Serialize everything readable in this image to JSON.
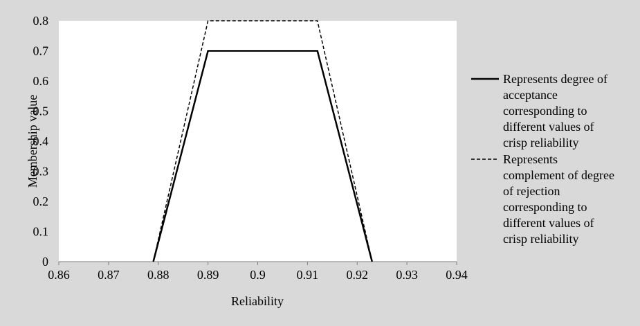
{
  "chart_data": {
    "type": "line",
    "xlabel": "Reliability",
    "ylabel": "Membership value",
    "xlim": [
      0.86,
      0.94
    ],
    "ylim": [
      0,
      0.8
    ],
    "x_ticks": [
      "0.86",
      "0.87",
      "0.88",
      "0.89",
      "0.9",
      "0.91",
      "0.92",
      "0.93",
      "0.94"
    ],
    "y_ticks": [
      "0",
      "0.1",
      "0.2",
      "0.3",
      "0.4",
      "0.5",
      "0.6",
      "0.7",
      "0.8"
    ],
    "grid": false,
    "legend_position": "right",
    "series": [
      {
        "name": "Represents degree of acceptance corresponding to different values of crisp reliability",
        "legend_lines": [
          "Represents degree of",
          "acceptance",
          "corresponding to",
          "different values of",
          "crisp reliability"
        ],
        "style": "solid",
        "color": "#000000",
        "points": [
          [
            0.879,
            0
          ],
          [
            0.89,
            0.7
          ],
          [
            0.912,
            0.7
          ],
          [
            0.923,
            0
          ]
        ]
      },
      {
        "name": "Represents complement of degree of rejection corresponding to different values of crisp reliability",
        "legend_lines": [
          "Represents",
          "complement of degree",
          "of rejection",
          "corresponding to",
          "different values of",
          "crisp reliability"
        ],
        "style": "dashed",
        "color": "#000000",
        "points": [
          [
            0.879,
            0
          ],
          [
            0.89,
            0.8
          ],
          [
            0.912,
            0.8
          ],
          [
            0.923,
            0
          ]
        ]
      }
    ]
  },
  "colors": {
    "background": "#d9d9d9",
    "plot_area": "#ffffff",
    "axis": "#808080",
    "line": "#000000"
  }
}
